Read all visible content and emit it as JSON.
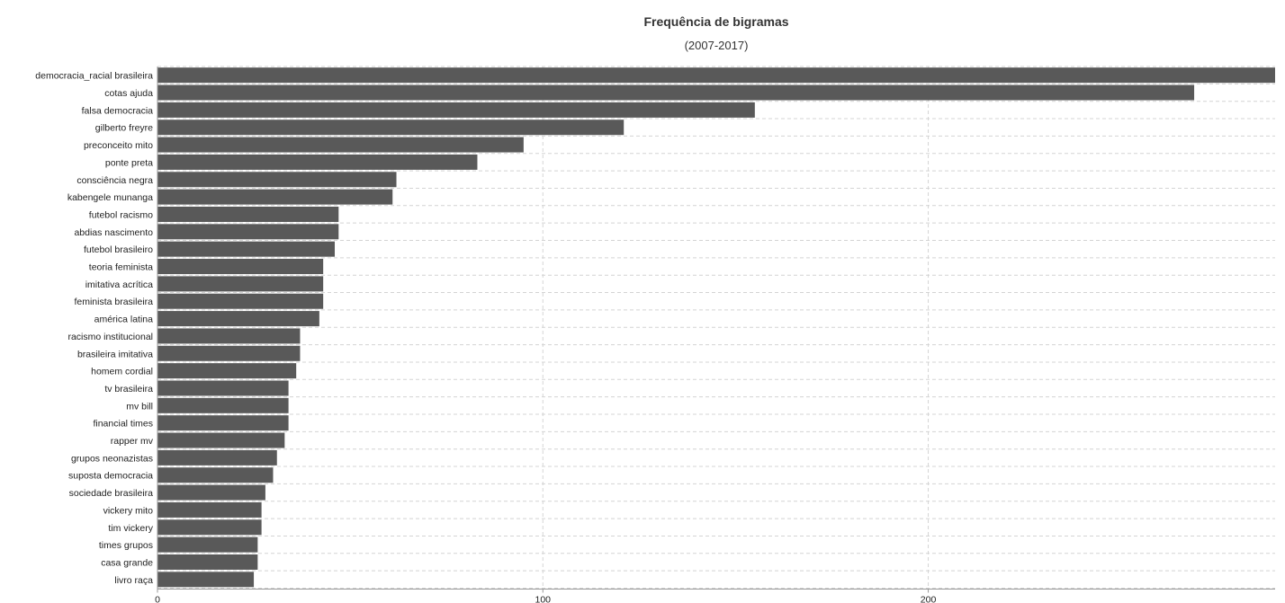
{
  "chart_data": {
    "type": "bar",
    "orientation": "horizontal",
    "title": "Frequência de bigramas",
    "subtitle": "(2007-2017)",
    "categories": [
      "democracia_racial brasileira",
      "cotas ajuda",
      "falsa democracia",
      "gilberto freyre",
      "preconceito mito",
      "ponte preta",
      "consciência negra",
      "kabengele munanga",
      "futebol racismo",
      "abdias nascimento",
      "futebol brasileiro",
      "teoria feminista",
      "imitativa acrítica",
      "feminista brasileira",
      "américa latina",
      "racismo institucional",
      "brasileira imitativa",
      "homem cordial",
      "tv brasileira",
      "mv bill",
      "financial times",
      "rapper mv",
      "grupos neonazistas",
      "suposta democracia",
      "sociedade brasileira",
      "vickery mito",
      "tim vickery",
      "times grupos",
      "casa grande",
      "livro raça"
    ],
    "values": [
      290,
      269,
      155,
      121,
      95,
      83,
      62,
      61,
      47,
      47,
      46,
      43,
      43,
      43,
      42,
      37,
      37,
      36,
      34,
      34,
      34,
      33,
      31,
      30,
      28,
      27,
      27,
      26,
      26,
      25
    ],
    "xlim": [
      0,
      290
    ],
    "xticks": [
      0,
      100,
      200
    ],
    "grid": true,
    "bar_color": "#595959"
  }
}
